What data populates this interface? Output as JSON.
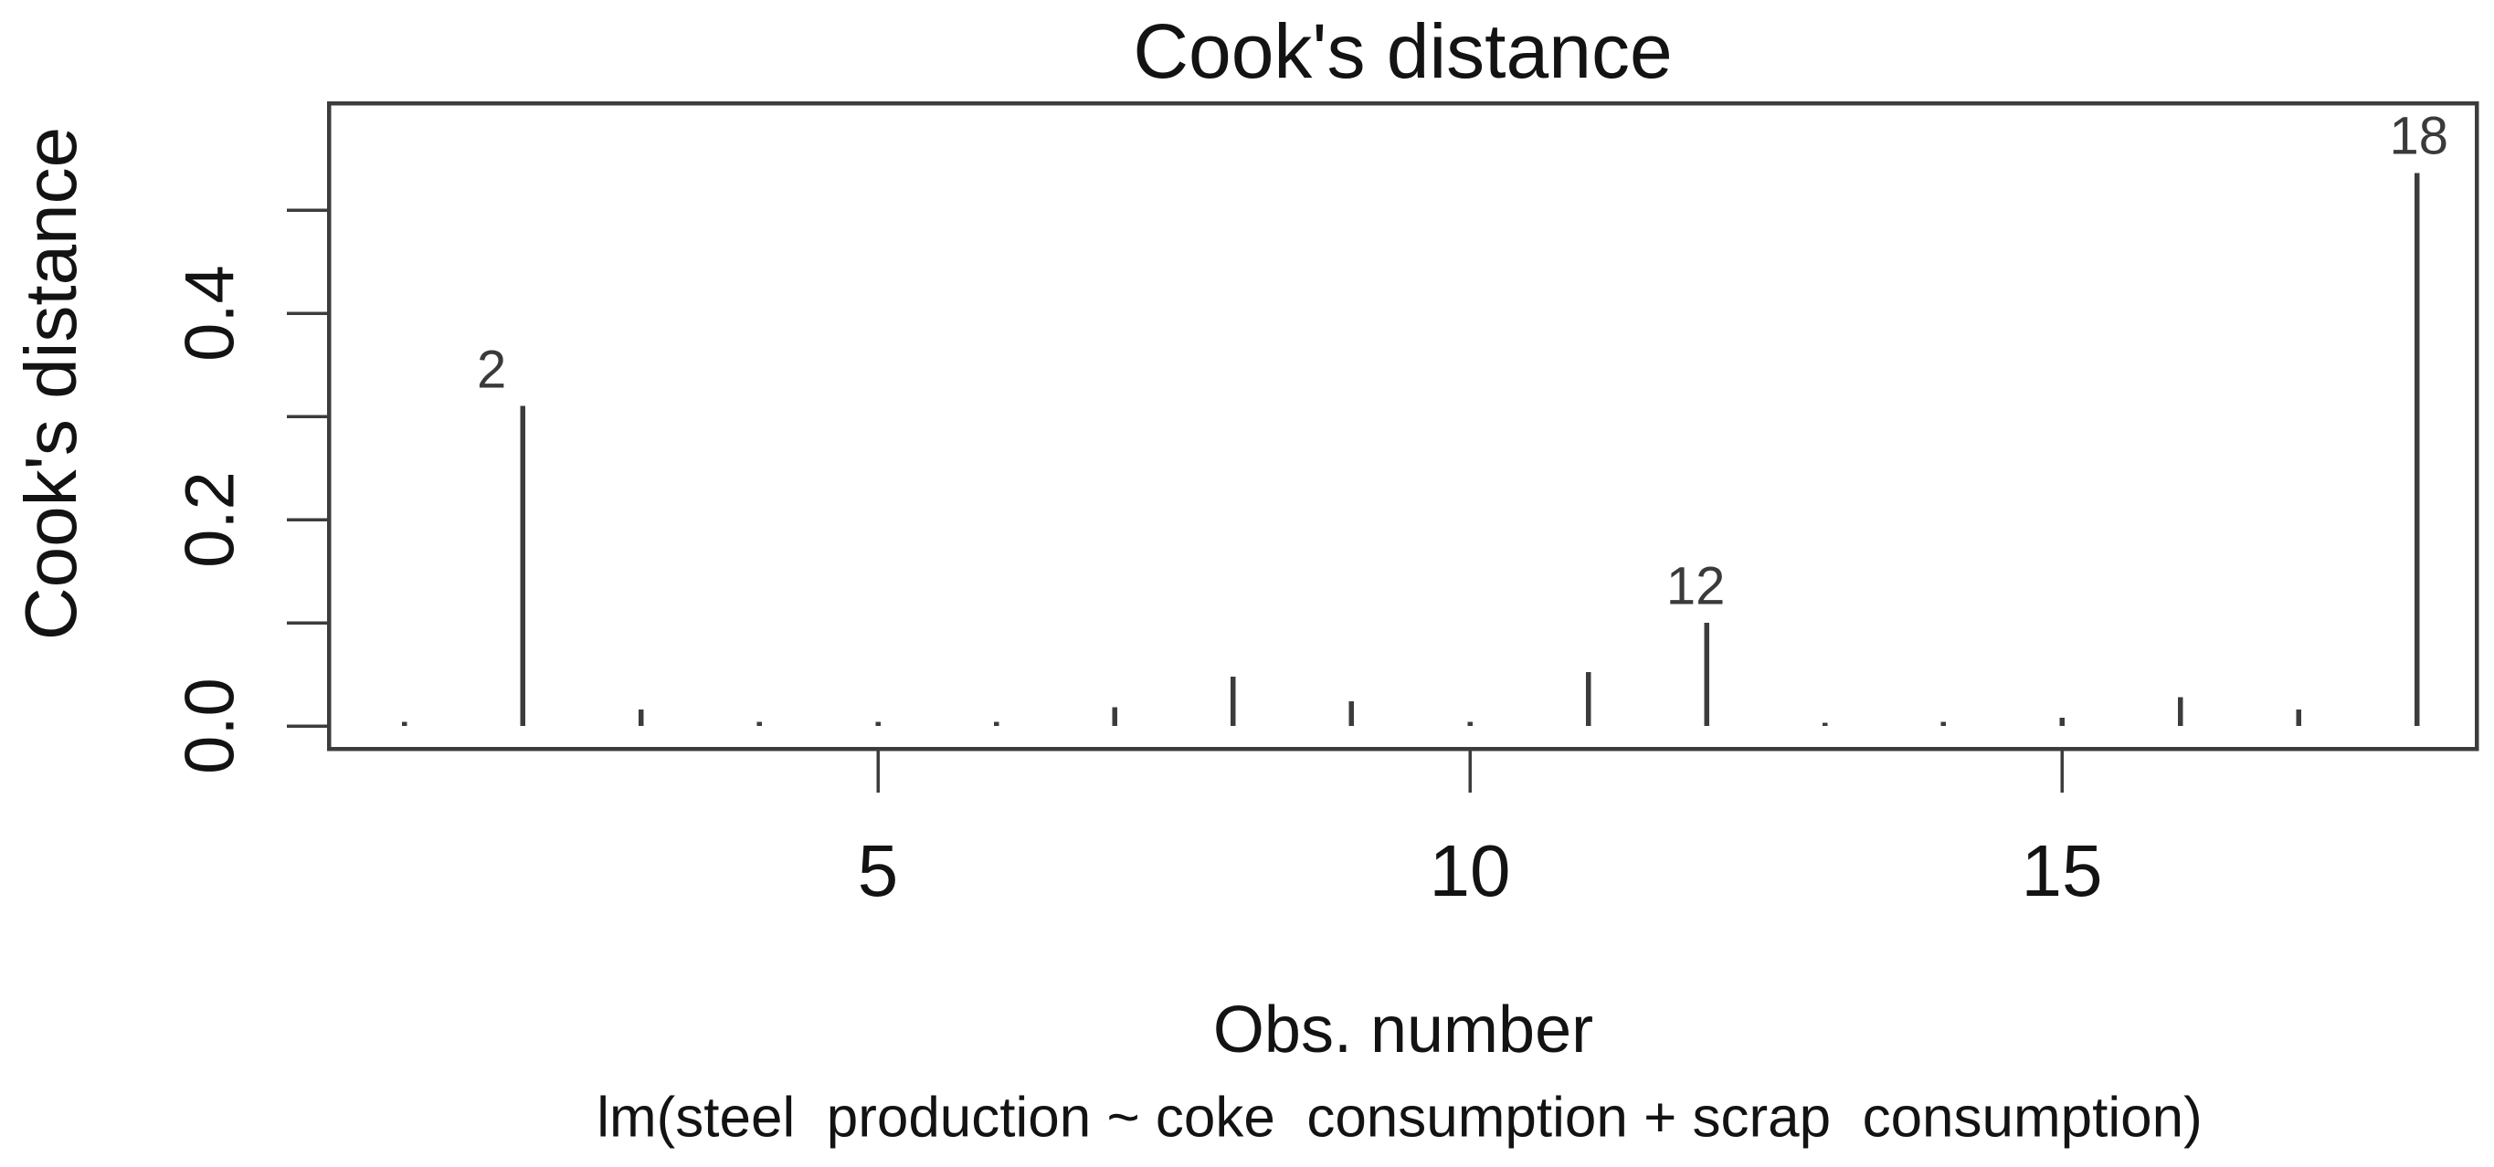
{
  "title": "Cook's distance",
  "y_axis": {
    "label": "Cook's distance",
    "tick_labels": [
      "0.0",
      "0.2",
      "0.4"
    ],
    "labeled_values": [
      0,
      0.2,
      0.4
    ],
    "minor_tick_values": [
      0,
      0.1,
      0.2,
      0.3,
      0.4,
      0.5
    ]
  },
  "x_axis": {
    "label": "Obs. number",
    "subtitle": "lm(steel  production ~ coke  consumption + scrap  consumption)",
    "tick_labels": [
      "5",
      "10",
      "15"
    ],
    "tick_values": [
      5,
      10,
      15
    ]
  },
  "colors": {
    "background": "#ffffff",
    "line": "#3c3c3c",
    "text": "#131313",
    "point_label_text": "#3a3a3a"
  },
  "chart_data": {
    "type": "bar",
    "style": "vertical-spike",
    "title": "Cook's distance",
    "xlabel": "Obs. number",
    "ylabel": "Cook's distance",
    "sublabel": "lm(steel  production ~ coke  consumption + scrap  consumption)",
    "x": [
      1,
      2,
      3,
      4,
      5,
      6,
      7,
      8,
      9,
      10,
      11,
      12,
      13,
      14,
      15,
      16,
      17,
      18
    ],
    "values": [
      0.004,
      0.31,
      0.016,
      0.004,
      0.004,
      0.004,
      0.018,
      0.048,
      0.024,
      0.004,
      0.052,
      0.1,
      0.003,
      0.004,
      0.008,
      0.028,
      0.016,
      0.536
    ],
    "xlim": [
      0.35,
      18.5
    ],
    "ylim": [
      0,
      0.6
    ],
    "x_ticks": [
      5,
      10,
      15
    ],
    "y_ticks": [
      0,
      0.1,
      0.2,
      0.3,
      0.4,
      0.5
    ],
    "y_tick_labels_shown": [
      "0.0",
      "0.2",
      "0.4"
    ],
    "grid": "off",
    "legend": "none",
    "labeled_points": [
      {
        "obs": 2,
        "label": "2",
        "value": 0.31
      },
      {
        "obs": 12,
        "label": "12",
        "value": 0.1
      },
      {
        "obs": 18,
        "label": "18",
        "value": 0.536
      }
    ]
  }
}
